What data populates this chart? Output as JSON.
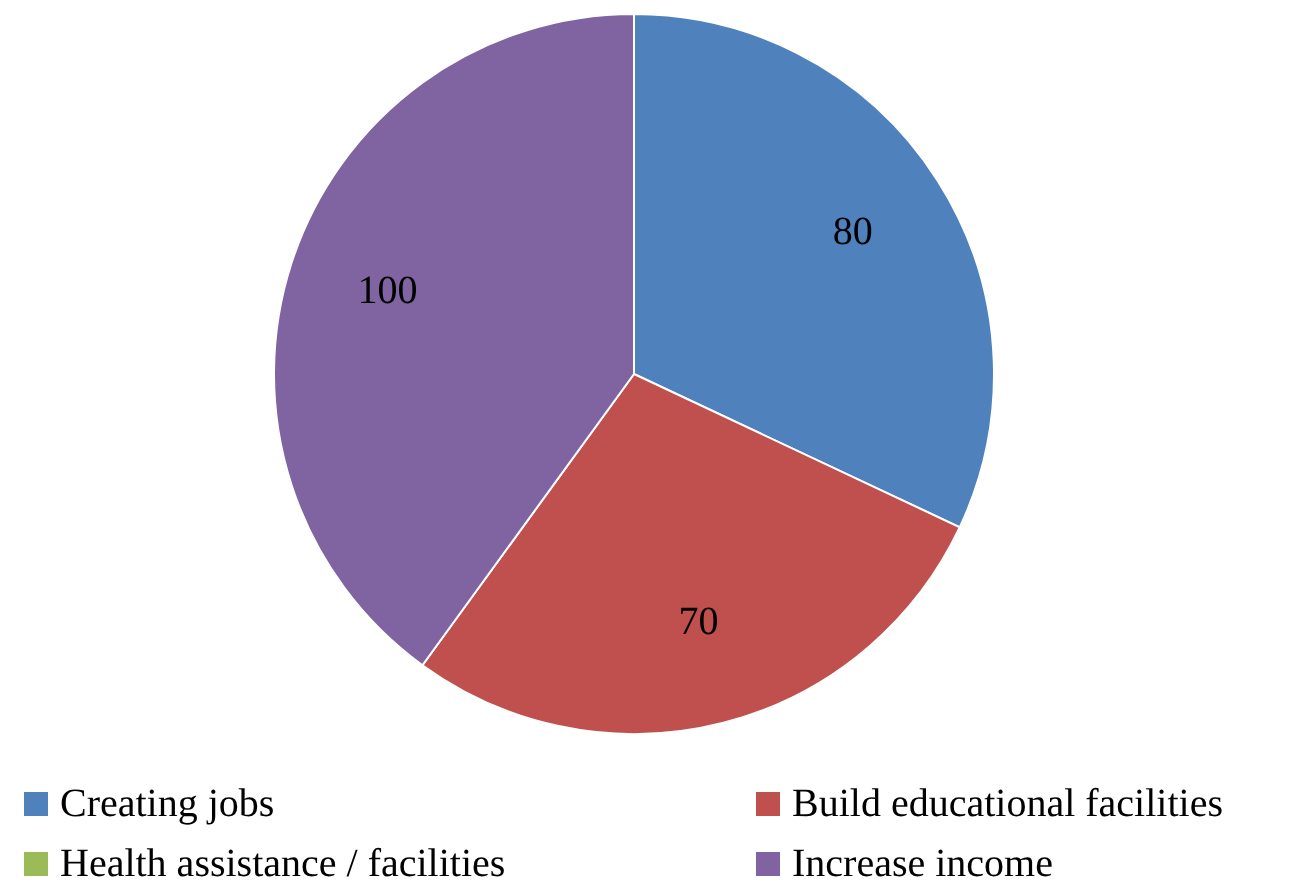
{
  "chart_data": {
    "type": "pie",
    "categories": [
      "Creating jobs",
      "Build educational facilities",
      "Health assistance / facilities",
      "Increase income"
    ],
    "values": [
      80,
      70,
      0,
      100
    ],
    "colors": [
      "#4f81bd",
      "#c0504d",
      "#9bbb59",
      "#8064a2"
    ],
    "value_labels": [
      "80",
      "70",
      null,
      "100"
    ],
    "legend": "bottom"
  }
}
